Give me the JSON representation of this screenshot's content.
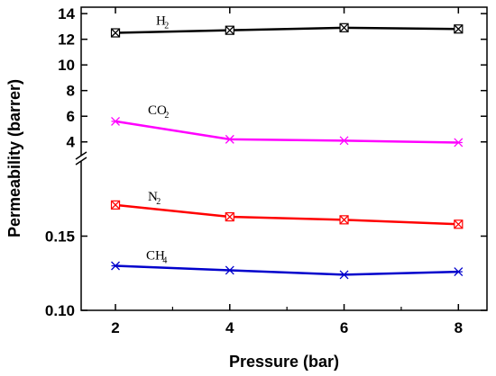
{
  "chart_data": {
    "type": "line",
    "xlabel": "Pressure (bar)",
    "ylabel": "Permeability (barrer)",
    "x": [
      2,
      4,
      6,
      8
    ],
    "xlim": [
      1.4,
      8.5
    ],
    "x_ticks": [
      "2",
      "4",
      "6",
      "8"
    ],
    "axis_break": true,
    "y_upper": {
      "range": [
        3.0,
        14.5
      ],
      "ticks": [
        "4",
        "6",
        "8",
        "10",
        "12",
        "14"
      ],
      "tick_values": [
        4,
        6,
        8,
        10,
        12,
        14
      ]
    },
    "y_lower": {
      "range": [
        0.1,
        0.2
      ],
      "ticks": [
        "0.10",
        "0.15"
      ],
      "tick_values": [
        0.1,
        0.15
      ]
    },
    "series": [
      {
        "name": "H",
        "sub": "2",
        "panel": "upper",
        "color": "#000000",
        "marker": "square-x",
        "values": [
          12.5,
          12.7,
          12.9,
          12.8
        ]
      },
      {
        "name": "CO",
        "sub": "2",
        "panel": "upper",
        "color": "#ff00ff",
        "marker": "x",
        "values": [
          5.6,
          4.2,
          4.1,
          3.95
        ]
      },
      {
        "name": "N",
        "sub": "2",
        "panel": "lower",
        "color": "#ff0000",
        "marker": "square-x",
        "values": [
          0.171,
          0.163,
          0.161,
          0.158
        ]
      },
      {
        "name": "CH",
        "sub": "4",
        "panel": "lower",
        "color": "#0000cc",
        "marker": "x",
        "values": [
          0.13,
          0.127,
          0.124,
          0.126
        ]
      }
    ],
    "grid": false,
    "legend": "none"
  }
}
